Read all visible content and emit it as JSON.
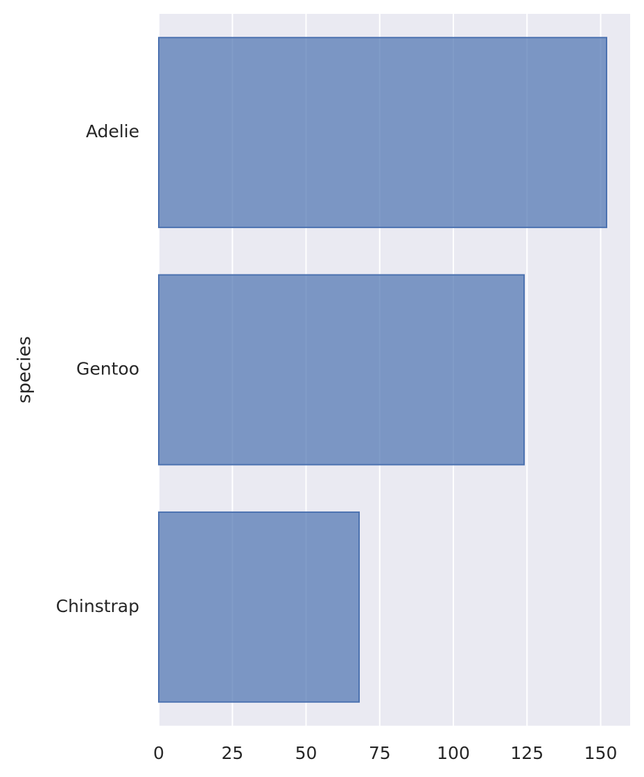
{
  "chart_data": {
    "type": "bar",
    "orientation": "horizontal",
    "categories": [
      "Adelie",
      "Gentoo",
      "Chinstrap"
    ],
    "values": [
      152,
      124,
      68
    ],
    "xlabel": "",
    "ylabel": "species",
    "xlim": [
      0,
      160
    ],
    "xticks": [
      0,
      25,
      50,
      75,
      100,
      125,
      150
    ],
    "xtick_labels": [
      "0",
      "25",
      "50",
      "75",
      "100",
      "125",
      "150"
    ],
    "grid": true,
    "legend": "none",
    "colors": {
      "background": "#eaeaf2",
      "bar_fill": "#4c72b0",
      "bar_edge": "#4c72b0",
      "grid": "#ffffff",
      "text": "#262626"
    }
  }
}
